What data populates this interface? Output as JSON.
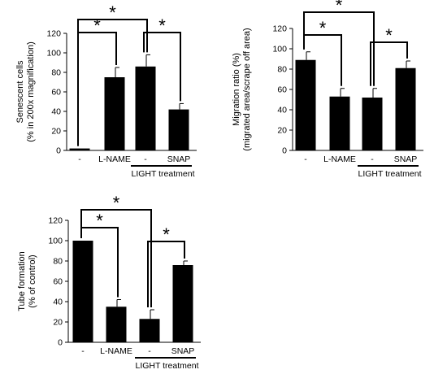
{
  "chart_data": [
    {
      "type": "bar",
      "ylabel_lines": [
        "Senescent cells",
        "(% in 200x magnification)"
      ],
      "categories": [
        "-",
        "L-NAME",
        "-",
        "SNAP"
      ],
      "values": [
        2,
        75,
        86,
        42
      ],
      "errors": [
        0,
        10,
        12,
        6
      ],
      "ylim": [
        0,
        120
      ],
      "yticks": [
        "0",
        "20",
        "40",
        "60",
        "80",
        "100",
        "120"
      ],
      "group_label": "LIGHT treatment",
      "significance": [
        {
          "from": 0,
          "to": 2,
          "label": "*"
        },
        {
          "from": 0,
          "to": 1,
          "label": "*"
        },
        {
          "from": 2,
          "to": 3,
          "label": "*"
        }
      ]
    },
    {
      "type": "bar",
      "ylabel_lines": [
        "Migration ratio (%)",
        "(migrated area/scrape off area)"
      ],
      "categories": [
        "-",
        "L-NAME",
        "-",
        "SNAP"
      ],
      "values": [
        89,
        53,
        52,
        81
      ],
      "errors": [
        8,
        8,
        9,
        7
      ],
      "ylim": [
        0,
        120
      ],
      "yticks": [
        "0",
        "20",
        "40",
        "60",
        "80",
        "100",
        "120"
      ],
      "group_label": "LIGHT treatment",
      "significance": [
        {
          "from": 0,
          "to": 2,
          "label": "*"
        },
        {
          "from": 0,
          "to": 1,
          "label": "*"
        },
        {
          "from": 2,
          "to": 3,
          "label": "*"
        }
      ]
    },
    {
      "type": "bar",
      "ylabel_lines": [
        "Tube formation",
        "(% of control)"
      ],
      "categories": [
        "-",
        "L-NAME",
        "-",
        "SNAP"
      ],
      "values": [
        100,
        35,
        23,
        76
      ],
      "errors": [
        0,
        7,
        9,
        4
      ],
      "ylim": [
        0,
        120
      ],
      "yticks": [
        "0",
        "20",
        "40",
        "60",
        "80",
        "100",
        "120"
      ],
      "group_label": "LIGHT treatment",
      "significance": [
        {
          "from": 0,
          "to": 2,
          "label": "*"
        },
        {
          "from": 0,
          "to": 1,
          "label": "*"
        },
        {
          "from": 2,
          "to": 3,
          "label": "*"
        }
      ]
    }
  ]
}
